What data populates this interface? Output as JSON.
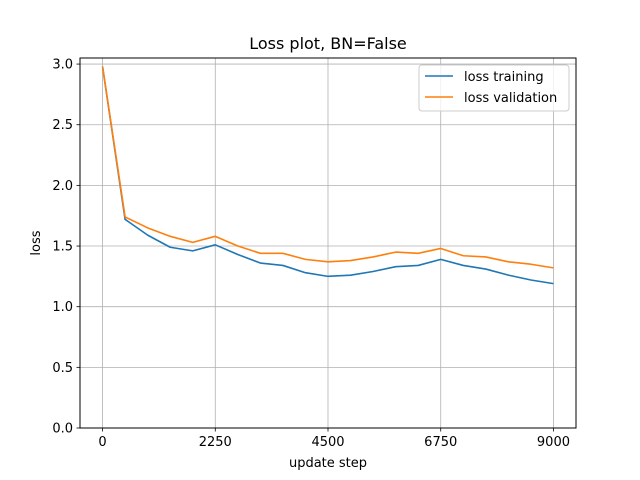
{
  "chart_data": {
    "type": "line",
    "title": "Loss plot, BN=False",
    "xlabel": "update step",
    "ylabel": "loss",
    "xlim": [
      -450,
      9450
    ],
    "ylim": [
      0,
      3.05
    ],
    "xticks": [
      0,
      2250,
      4500,
      6750,
      9000
    ],
    "yticks": [
      0.0,
      0.5,
      1.0,
      1.5,
      2.0,
      2.5,
      3.0
    ],
    "xtick_labels": [
      "0",
      "2250",
      "4500",
      "6750",
      "9000"
    ],
    "ytick_labels": [
      "0.0",
      "0.5",
      "1.0",
      "1.5",
      "2.0",
      "2.5",
      "3.0"
    ],
    "grid": true,
    "legend_position": "top-right",
    "x": [
      0,
      450,
      900,
      1350,
      1800,
      2250,
      2700,
      3150,
      3600,
      4050,
      4500,
      4950,
      5400,
      5850,
      6300,
      6750,
      7200,
      7650,
      8100,
      8550,
      9000
    ],
    "series": [
      {
        "name": "loss training",
        "color": "#1f77b4",
        "values": [
          2.98,
          1.72,
          1.59,
          1.49,
          1.46,
          1.51,
          1.43,
          1.36,
          1.34,
          1.28,
          1.25,
          1.26,
          1.29,
          1.33,
          1.34,
          1.39,
          1.34,
          1.31,
          1.26,
          1.22,
          1.19
        ]
      },
      {
        "name": "loss validation",
        "color": "#ff7f0e",
        "values": [
          2.98,
          1.74,
          1.65,
          1.58,
          1.53,
          1.58,
          1.5,
          1.44,
          1.44,
          1.39,
          1.37,
          1.38,
          1.41,
          1.45,
          1.44,
          1.48,
          1.42,
          1.41,
          1.37,
          1.35,
          1.32
        ]
      }
    ]
  }
}
